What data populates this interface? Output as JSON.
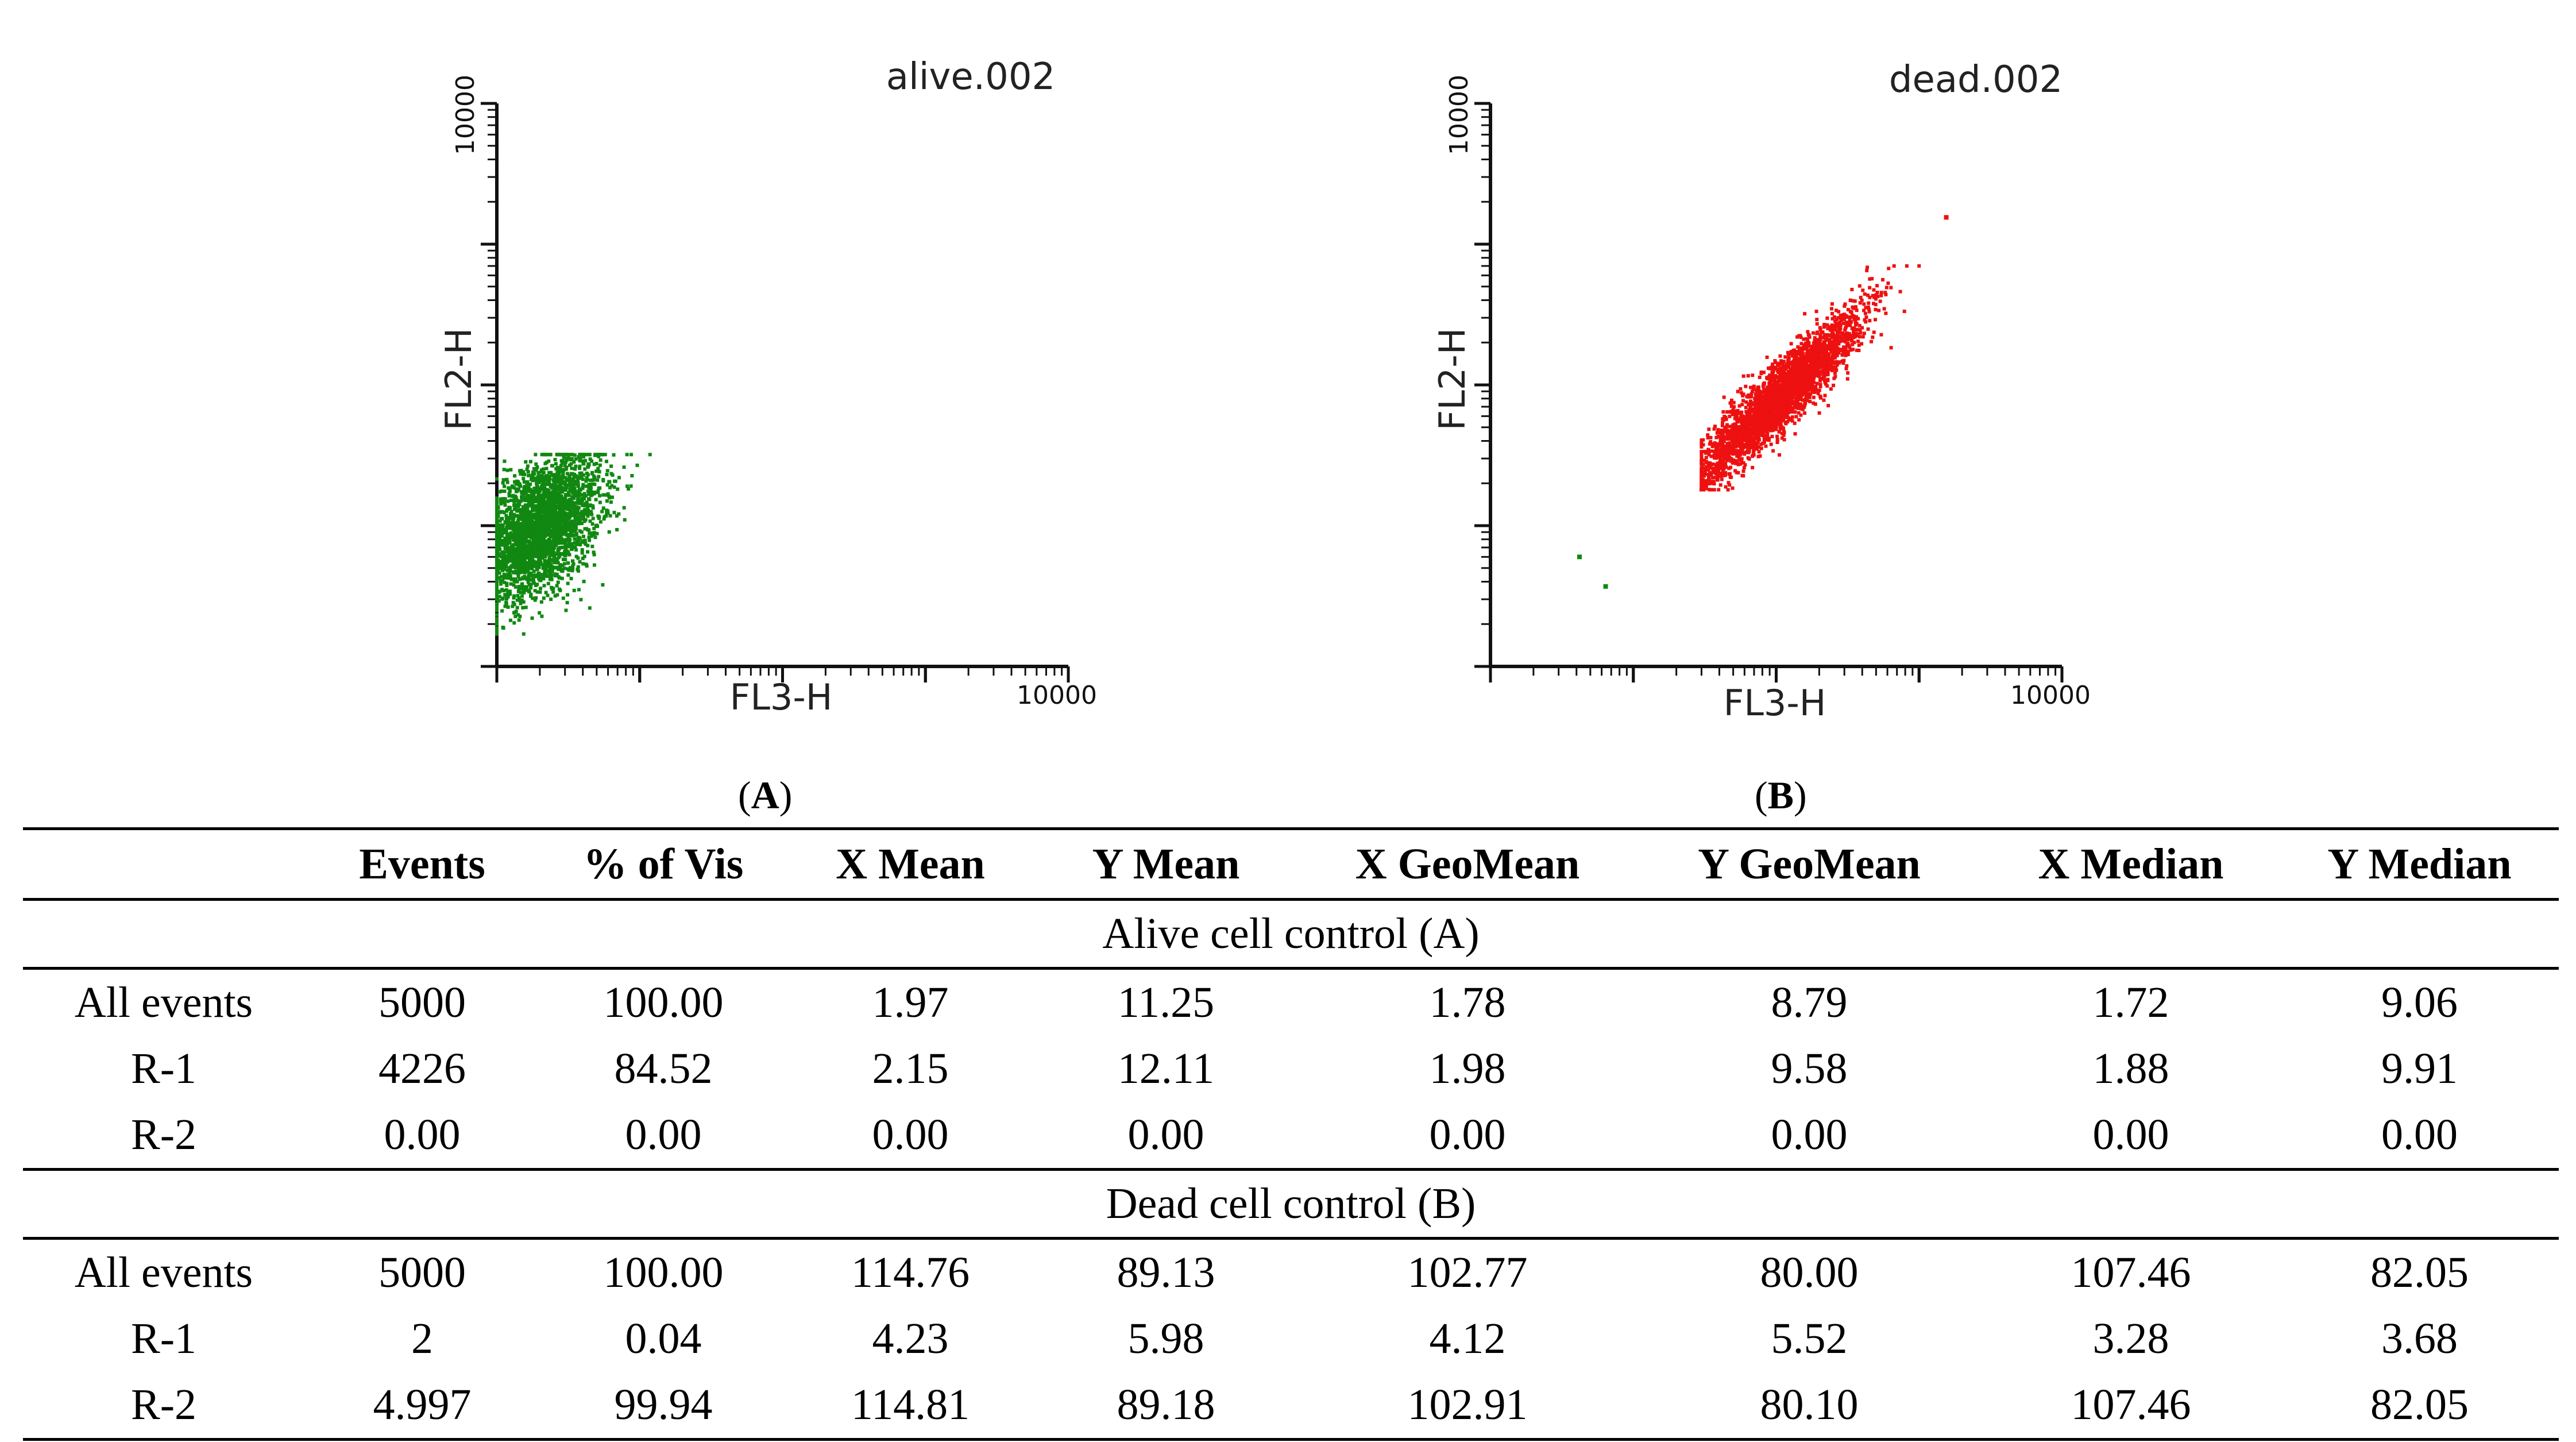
{
  "chart_data": [
    {
      "type": "scatter",
      "panel": "A",
      "title": "alive.002",
      "xlabel": "FL3-H",
      "ylabel": "FL2-H",
      "xscale": "log",
      "yscale": "log",
      "xlim": [
        1,
        10000
      ],
      "ylim": [
        1,
        10000
      ],
      "x_max_tick_label": "10000",
      "y_max_tick_label": "10000",
      "dot_color": "#118811",
      "cluster": {
        "n_points": 4226,
        "x_center": 1.98,
        "y_center": 9.58,
        "x_range": [
          1,
          13
        ],
        "y_range": [
          1.7,
          32
        ],
        "correlation": 0.45
      }
    },
    {
      "type": "scatter",
      "panel": "B",
      "title": "dead.002",
      "xlabel": "FL3-H",
      "ylabel": "FL2-H",
      "xscale": "log",
      "yscale": "log",
      "xlim": [
        1,
        10000
      ],
      "ylim": [
        1,
        10000
      ],
      "x_max_tick_label": "10000",
      "y_max_tick_label": "10000",
      "dot_color": "#ee1111",
      "cluster": {
        "n_points": 4997,
        "x_center": 102.91,
        "y_center": 80.1,
        "x_range": [
          30,
          1000
        ],
        "y_range": [
          18,
          700
        ],
        "correlation": 0.92
      },
      "outliers": [
        {
          "x": 4.2,
          "y": 6.0,
          "color": "#118811"
        },
        {
          "x": 6.4,
          "y": 3.7,
          "color": "#118811"
        },
        {
          "x": 1550,
          "y": 1550,
          "color": "#ee1111"
        }
      ]
    }
  ],
  "panel_labels": {
    "a_open": "(",
    "a_letter": "A",
    "a_close": ")",
    "b_open": "(",
    "b_letter": "B",
    "b_close": ")"
  },
  "table": {
    "headers": [
      "",
      "Events",
      "% of Vis",
      "X Mean",
      "Y Mean",
      "X GeoMean",
      "Y GeoMean",
      "X Median",
      "Y Median"
    ],
    "groups": [
      {
        "title": "Alive cell control (A)",
        "rows": [
          [
            "All events",
            "5000",
            "100.00",
            "1.97",
            "11.25",
            "1.78",
            "8.79",
            "1.72",
            "9.06"
          ],
          [
            "R-1",
            "4226",
            "84.52",
            "2.15",
            "12.11",
            "1.98",
            "9.58",
            "1.88",
            "9.91"
          ],
          [
            "R-2",
            "0.00",
            "0.00",
            "0.00",
            "0.00",
            "0.00",
            "0.00",
            "0.00",
            "0.00"
          ]
        ]
      },
      {
        "title": "Dead cell control (B)",
        "rows": [
          [
            "All events",
            "5000",
            "100.00",
            "114.76",
            "89.13",
            "102.77",
            "80.00",
            "107.46",
            "82.05"
          ],
          [
            "R-1",
            "2",
            "0.04",
            "4.23",
            "5.98",
            "4.12",
            "5.52",
            "3.28",
            "3.68"
          ],
          [
            "R-2",
            "4.997",
            "99.94",
            "114.81",
            "89.18",
            "102.91",
            "80.10",
            "107.46",
            "82.05"
          ]
        ]
      }
    ]
  }
}
